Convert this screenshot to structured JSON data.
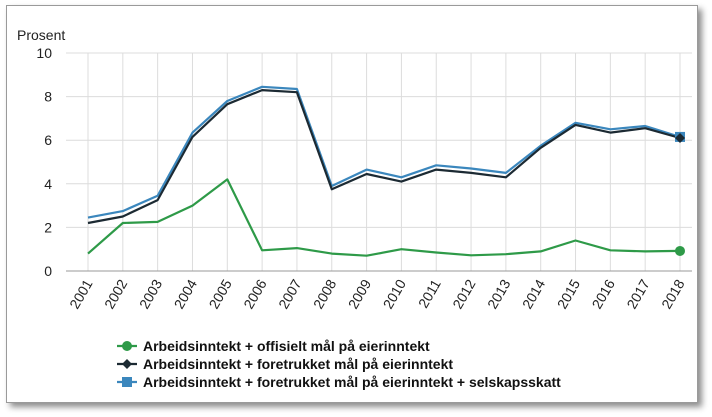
{
  "chart_data": {
    "type": "line",
    "ylabel": "Prosent",
    "ylim": [
      0,
      10
    ],
    "yticks": [
      0,
      2,
      4,
      6,
      8,
      10
    ],
    "grid": true,
    "legend_position": "bottom",
    "categories": [
      "2001",
      "2002",
      "2003",
      "2004",
      "2005",
      "2006",
      "2007",
      "2008",
      "2009",
      "2010",
      "2011",
      "2012",
      "2013",
      "2014",
      "2015",
      "2016",
      "2017",
      "2018"
    ],
    "series": [
      {
        "name": "Arbeidsinntekt + offisielt mål på eierinntekt",
        "color": "#2e9a48",
        "marker": "circle",
        "values": [
          0.8,
          2.2,
          2.25,
          3.0,
          4.2,
          0.95,
          1.05,
          0.8,
          0.7,
          1.0,
          0.85,
          0.72,
          0.77,
          0.9,
          1.4,
          0.95,
          0.9,
          0.92
        ]
      },
      {
        "name": "Arbeidsinntekt + foretrukket mål på eierinntekt",
        "color": "#1c2a33",
        "marker": "diamond",
        "values": [
          2.2,
          2.5,
          3.25,
          6.15,
          7.65,
          8.3,
          8.2,
          3.75,
          4.45,
          4.1,
          4.65,
          4.5,
          4.3,
          5.65,
          6.7,
          6.35,
          6.55,
          6.1
        ]
      },
      {
        "name": "Arbeidsinntekt + foretrukket mål på eierinntekt + selskapsskatt",
        "color": "#3b87bd",
        "marker": "square",
        "values": [
          2.45,
          2.75,
          3.45,
          6.35,
          7.8,
          8.45,
          8.35,
          3.9,
          4.65,
          4.3,
          4.85,
          4.7,
          4.5,
          5.75,
          6.8,
          6.5,
          6.65,
          6.15
        ]
      }
    ]
  }
}
